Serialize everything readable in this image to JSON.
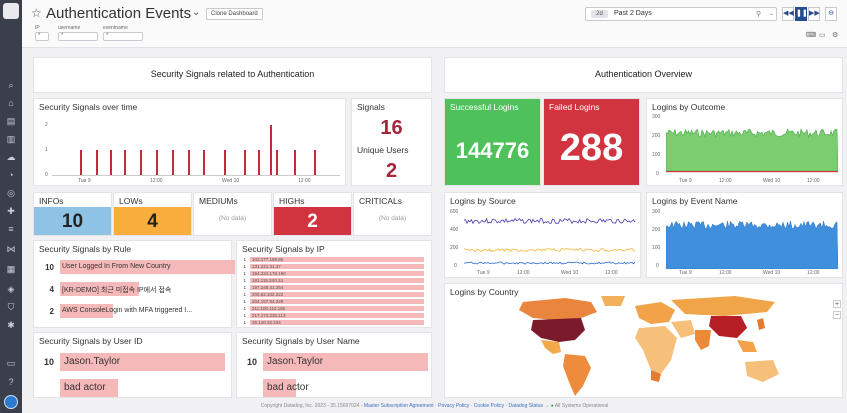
{
  "header": {
    "title": "Authentication Events",
    "clone_label": "Clone Dashboard",
    "template_vars": [
      {
        "name": "IP",
        "value": "*"
      },
      {
        "name": "username",
        "value": "*"
      },
      {
        "name": "eventname",
        "value": "*"
      }
    ],
    "time": {
      "short": "2d",
      "label": "Past 2 Days"
    }
  },
  "left_group": {
    "title": "Security Signals related to Authentication",
    "over_time": {
      "title": "Security Signals over time",
      "yticks": [
        "2",
        "1",
        "0"
      ],
      "xticks": [
        "Tue 9",
        "12:00",
        "Wed 10",
        "12:00"
      ]
    },
    "signals": {
      "label": "Signals",
      "value": "16"
    },
    "unique_users": {
      "label": "Unique Users",
      "value": "2"
    },
    "severity": [
      {
        "label": "INFOs",
        "value": "10",
        "color": "#8fc3e6"
      },
      {
        "label": "LOWs",
        "value": "4",
        "color": "#f8ad3c"
      },
      {
        "label": "MEDIUMs",
        "value": "(No data)",
        "color": "#ffffff"
      },
      {
        "label": "HIGHs",
        "value": "2",
        "color": "#d1333f"
      },
      {
        "label": "CRITICALs",
        "value": "(No data)",
        "color": "#ffffff"
      }
    ],
    "by_rule": {
      "title": "Security Signals by Rule",
      "rows": [
        {
          "count": "10",
          "label": "User Logged In From New Country",
          "fill": 1.0
        },
        {
          "count": "4",
          "label": "[KR-DEMO] 최근 미접속 IP에서 접속",
          "fill": 0.45
        },
        {
          "count": "2",
          "label": "AWS ConsoleLogin with MFA triggered I...",
          "fill": 0.3
        }
      ]
    },
    "by_ip": {
      "title": "Security Signals by IP",
      "rows": [
        {
          "count": "1",
          "ip": "102.177.188.86"
        },
        {
          "count": "1",
          "ip": "131.221.31.37"
        },
        {
          "count": "1",
          "ip": "154.224.176.190"
        },
        {
          "count": "1",
          "ip": "181.115.240.24"
        },
        {
          "count": "1",
          "ip": "197.248.41.254"
        },
        {
          "count": "1",
          "ip": "200.62.102.222"
        },
        {
          "count": "1",
          "ip": "204.157.94.229"
        },
        {
          "count": "1",
          "ip": "211.106.114.186"
        },
        {
          "count": "1",
          "ip": "217.174.235.113"
        },
        {
          "count": "1",
          "ip": "36.140.32.234"
        }
      ]
    },
    "by_user_id": {
      "title": "Security Signals by User ID",
      "rows": [
        {
          "count": "10",
          "label": "Jason.Taylor",
          "fill": 1.0
        },
        {
          "count": "",
          "label": "bad actor",
          "fill": 0.35
        }
      ]
    },
    "by_user_name": {
      "title": "Security Signals by User Name",
      "rows": [
        {
          "count": "10",
          "label": "Jason.Taylor",
          "fill": 1.0
        },
        {
          "count": "",
          "label": "bad actor",
          "fill": 0.2
        }
      ]
    }
  },
  "right_group": {
    "title": "Authentication Overview",
    "successful": {
      "label": "Successful Logins",
      "value": "144776",
      "color": "#4fc15a"
    },
    "failed": {
      "label": "Failed Logins",
      "value": "288",
      "color": "#d1333f"
    },
    "by_outcome": {
      "title": "Logins by Outcome",
      "yticks": [
        "300",
        "200",
        "100",
        "0"
      ],
      "xticks": [
        "Tue 9",
        "12:00",
        "Wed 10",
        "12:00"
      ]
    },
    "by_source": {
      "title": "Logins by Source",
      "yticks": [
        "600",
        "400",
        "200",
        "0"
      ],
      "xticks": [
        "Tue 9",
        "12:00",
        "Wed 10",
        "12:00"
      ]
    },
    "by_event": {
      "title": "Logins by Event Name",
      "yticks": [
        "300",
        "200",
        "100",
        "0"
      ],
      "xticks": [
        "Tue 9",
        "12:00",
        "Wed 10",
        "12:00"
      ]
    },
    "by_country": {
      "title": "Logins by Country"
    }
  },
  "footer": {
    "copyright": "Copyright Datadog, Inc. 2023 - 35.15697024 - ",
    "msa": "Master Subscription Agreement",
    "privacy": "Privacy Policy",
    "cookie": "Cookie Policy",
    "status": "Datadog Status →",
    "ops": "All Systems Operational",
    "sep": " · "
  }
}
